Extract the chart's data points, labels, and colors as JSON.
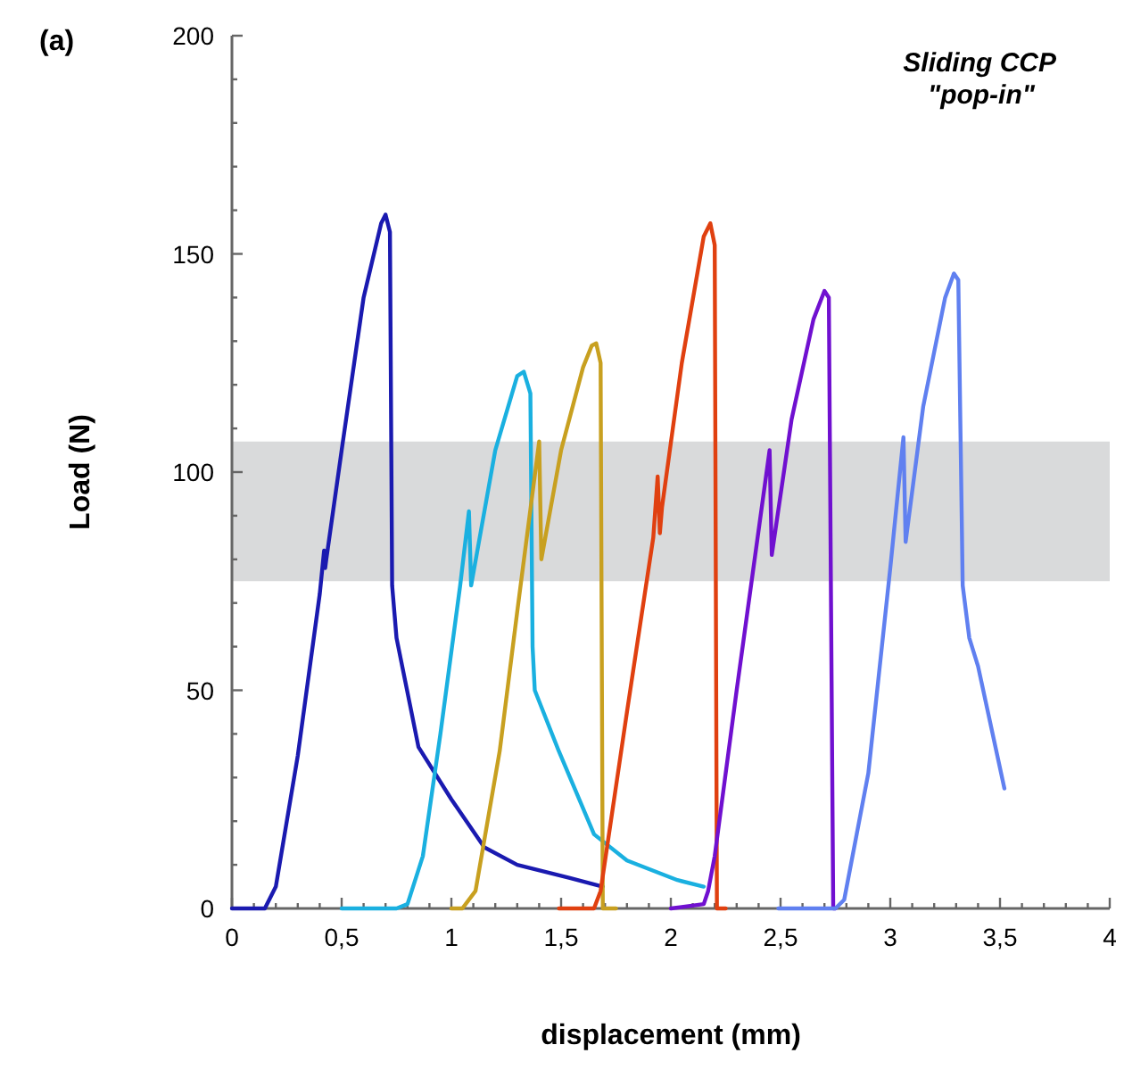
{
  "chart_data": {
    "type": "line",
    "title": "(a)",
    "xlabel": "displacement (mm)",
    "ylabel": "Load (N)",
    "annotations": [
      "Sliding CCP",
      "\"pop-in\""
    ],
    "xlim": [
      0,
      4
    ],
    "ylim": [
      0,
      200
    ],
    "xticks": [
      {
        "value": 0,
        "label": "0"
      },
      {
        "value": 0.1,
        "label": null
      },
      {
        "value": 0.2,
        "label": null
      },
      {
        "value": 0.3,
        "label": null
      },
      {
        "value": 0.4,
        "label": null
      },
      {
        "value": 0.5,
        "label": "0,5"
      },
      {
        "value": 0.6,
        "label": null
      },
      {
        "value": 0.7,
        "label": null
      },
      {
        "value": 0.8,
        "label": null
      },
      {
        "value": 0.9,
        "label": null
      },
      {
        "value": 1,
        "label": "1"
      },
      {
        "value": 1.1,
        "label": null
      },
      {
        "value": 1.2,
        "label": null
      },
      {
        "value": 1.3,
        "label": null
      },
      {
        "value": 1.4,
        "label": null
      },
      {
        "value": 1.5,
        "label": "1,5"
      },
      {
        "value": 1.6,
        "label": null
      },
      {
        "value": 1.7,
        "label": null
      },
      {
        "value": 1.8,
        "label": null
      },
      {
        "value": 1.9,
        "label": null
      },
      {
        "value": 2,
        "label": "2"
      },
      {
        "value": 2.1,
        "label": null
      },
      {
        "value": 2.2,
        "label": null
      },
      {
        "value": 2.3,
        "label": null
      },
      {
        "value": 2.4,
        "label": null
      },
      {
        "value": 2.5,
        "label": "2,5"
      },
      {
        "value": 2.6,
        "label": null
      },
      {
        "value": 2.7,
        "label": null
      },
      {
        "value": 2.8,
        "label": null
      },
      {
        "value": 2.9,
        "label": null
      },
      {
        "value": 3,
        "label": "3"
      },
      {
        "value": 3.1,
        "label": null
      },
      {
        "value": 3.2,
        "label": null
      },
      {
        "value": 3.3,
        "label": null
      },
      {
        "value": 3.4,
        "label": null
      },
      {
        "value": 3.5,
        "label": "3,5"
      },
      {
        "value": 3.6,
        "label": null
      },
      {
        "value": 3.7,
        "label": null
      },
      {
        "value": 3.8,
        "label": null
      },
      {
        "value": 3.9,
        "label": null
      },
      {
        "value": 4,
        "label": "4"
      }
    ],
    "yticks": [
      0,
      {
        "value": 10,
        "label": null
      },
      {
        "value": 20,
        "label": null
      },
      {
        "value": 30,
        "label": null
      },
      {
        "value": 40,
        "label": null
      },
      50,
      {
        "value": 60,
        "label": null
      },
      {
        "value": 70,
        "label": null
      },
      {
        "value": 80,
        "label": null
      },
      {
        "value": 90,
        "label": null
      },
      100,
      {
        "value": 110,
        "label": null
      },
      {
        "value": 120,
        "label": null
      },
      {
        "value": 130,
        "label": null
      },
      {
        "value": 140,
        "label": null
      },
      150,
      {
        "value": 160,
        "label": null
      },
      {
        "value": 170,
        "label": null
      },
      {
        "value": 180,
        "label": null
      },
      {
        "value": 190,
        "label": null
      },
      200
    ],
    "grid": false,
    "marker": "none",
    "line_style": "solid",
    "bands": [
      {
        "axis": "y",
        "from": 75,
        "to": 107,
        "color": "#d9dadb"
      }
    ],
    "series": [
      {
        "color": "#1a1ab0",
        "x": [
          0,
          0.15,
          0.2,
          0.3,
          0.4,
          0.42,
          0.425,
          0.43,
          0.5,
          0.6,
          0.68,
          0.7,
          0.72,
          0.73,
          0.75,
          0.81,
          0.85,
          1.0,
          1.15,
          1.3,
          1.54,
          1.69
        ],
        "values": [
          0,
          0,
          5,
          35,
          72,
          82,
          78,
          80,
          105,
          140,
          157,
          159,
          155,
          74,
          62,
          47,
          37,
          25,
          14,
          10,
          7,
          5
        ]
      },
      {
        "color": "#1ab0e0",
        "x": [
          0.5,
          0.75,
          0.8,
          0.87,
          0.95,
          1.04,
          1.08,
          1.09,
          1.2,
          1.3,
          1.33,
          1.36,
          1.37,
          1.38,
          1.49,
          1.65,
          1.8,
          2.03,
          2.15
        ],
        "values": [
          0,
          0,
          1,
          12,
          40,
          74,
          91,
          74,
          105,
          122,
          123,
          118,
          60,
          50,
          36,
          17,
          11,
          6.5,
          5
        ]
      },
      {
        "color": "#c8a020",
        "x": [
          1.0,
          1.05,
          1.11,
          1.22,
          1.3,
          1.4,
          1.41,
          1.5,
          1.6,
          1.64,
          1.66,
          1.68,
          1.69,
          1.75
        ],
        "values": [
          0,
          0,
          4,
          36,
          68,
          107,
          80,
          105,
          124,
          129,
          129.5,
          125,
          0,
          0
        ]
      },
      {
        "color": "#e04010",
        "x": [
          1.49,
          1.65,
          1.68,
          1.8,
          1.92,
          1.94,
          1.95,
          1.96,
          2.05,
          2.15,
          2.18,
          2.2,
          2.21,
          2.25
        ],
        "values": [
          0,
          0,
          4,
          45,
          85,
          99,
          86,
          92,
          125,
          154,
          157,
          152,
          0,
          0
        ]
      },
      {
        "color": "#7010d0",
        "x": [
          2.0,
          2.15,
          2.17,
          2.2,
          2.3,
          2.45,
          2.46,
          2.55,
          2.65,
          2.7,
          2.72,
          2.74,
          2.75
        ],
        "values": [
          0,
          1,
          4,
          12,
          50,
          105,
          81,
          112,
          135,
          141.5,
          140,
          0,
          0
        ]
      },
      {
        "color": "#6080f0",
        "x": [
          2.49,
          2.75,
          2.79,
          2.9,
          3.0,
          3.06,
          3.07,
          3.15,
          3.25,
          3.29,
          3.31,
          3.33,
          3.36,
          3.4,
          3.52
        ],
        "values": [
          0,
          0,
          2,
          31,
          78,
          108,
          84,
          115,
          140,
          145.5,
          144,
          74,
          62,
          55.5,
          27.5
        ]
      }
    ]
  }
}
